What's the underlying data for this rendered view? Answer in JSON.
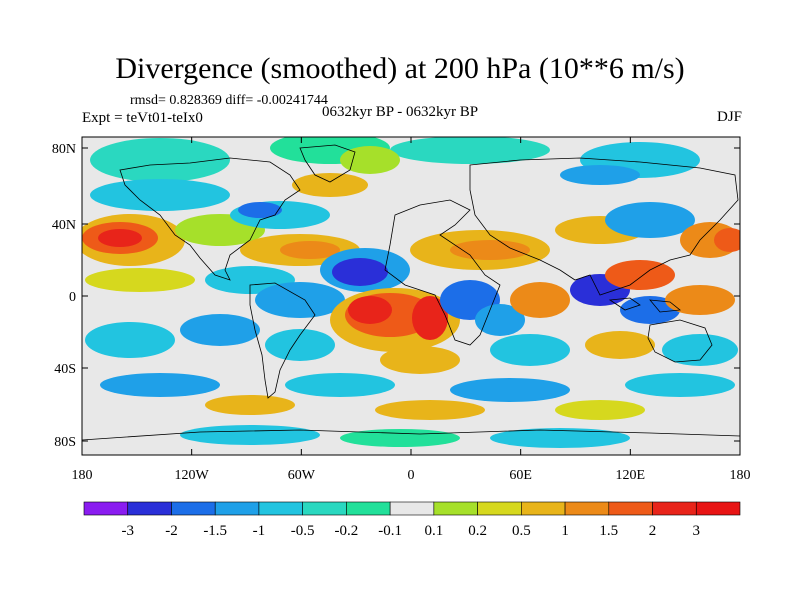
{
  "title": "Divergence (smoothed) at 200 hPa (10**6 m/s)",
  "stats": "rmsd= 0.828369 diff= -0.00241744",
  "experiment": "Expt = teVt01-teIx0",
  "period": "0632kyr BP - 0632kyr BP",
  "season": "DJF",
  "lat_ticks": [
    "80N",
    "40N",
    "0",
    "40S",
    "80S"
  ],
  "lon_ticks": [
    "180",
    "120W",
    "60W",
    "0",
    "60E",
    "120E",
    "180"
  ],
  "colorbar": {
    "labels": [
      "-3",
      "-2",
      "-1.5",
      "-1",
      "-0.5",
      "-0.2",
      "-0.1",
      "0.1",
      "0.2",
      "0.5",
      "1",
      "1.5",
      "2",
      "3"
    ],
    "colors": [
      "#8a1cf0",
      "#2a2fd8",
      "#1c6ee8",
      "#1fa0e8",
      "#22c4e0",
      "#2ad8c0",
      "#22e09a",
      "#e8e8e8",
      "#a6e02a",
      "#d6d81e",
      "#e8b41a",
      "#ec8a18",
      "#ee5a18",
      "#e8241a",
      "#e81414"
    ]
  },
  "map_colors": {
    "land_outline": "#000000",
    "near_zero": "#e8e8e8"
  }
}
